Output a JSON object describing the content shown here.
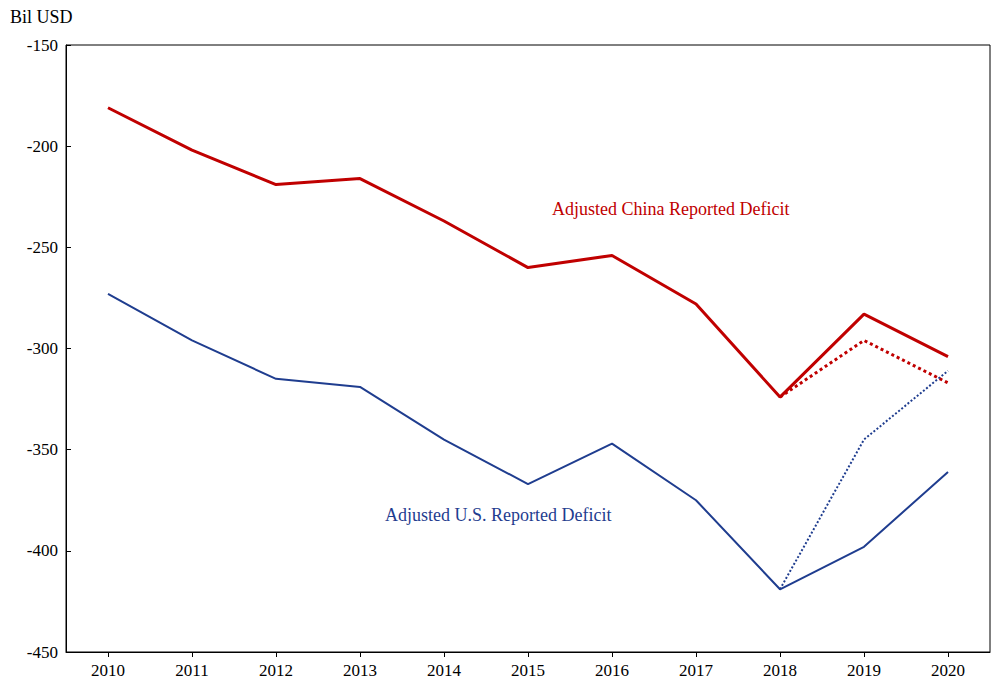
{
  "chart_data": {
    "type": "line",
    "y_label": "Bil USD",
    "categories": [
      "2010",
      "2011",
      "2012",
      "2013",
      "2014",
      "2015",
      "2016",
      "2017",
      "2018",
      "2019",
      "2020"
    ],
    "ylim": [
      -450,
      -150
    ],
    "yticks": [
      -450,
      -400,
      -350,
      -300,
      -250,
      -200,
      -150
    ],
    "grid": false,
    "series": [
      {
        "name": "Adjusted China Reported Deficit",
        "color": "#c00000",
        "line_style": "solid",
        "values": [
          -181,
          -202,
          -219,
          -216,
          -237,
          -260,
          -254,
          -278,
          -324,
          -283,
          -304
        ]
      },
      {
        "color": "#c00000",
        "line_style": "dotted",
        "values": [
          null,
          null,
          null,
          null,
          null,
          null,
          null,
          null,
          -324,
          -296,
          -317
        ]
      },
      {
        "name": "Adjusted U.S. Reported Deficit",
        "color": "#1f3d8f",
        "line_style": "solid",
        "values": [
          -273,
          -296,
          -315,
          -319,
          -345,
          -367,
          -347,
          -375,
          -419,
          -398,
          -361
        ]
      },
      {
        "color": "#1f3d8f",
        "line_style": "dotted",
        "values": [
          null,
          null,
          null,
          null,
          null,
          null,
          null,
          null,
          -419,
          -345,
          -311
        ]
      }
    ]
  }
}
